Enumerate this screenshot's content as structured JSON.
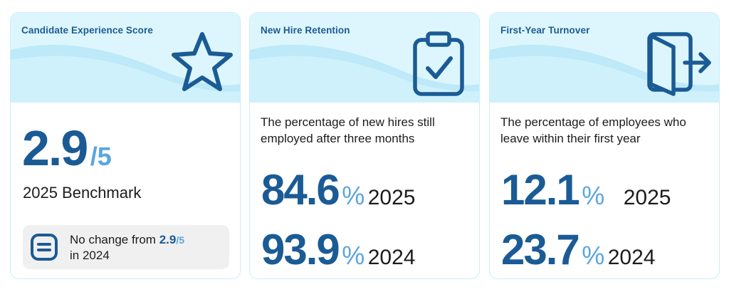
{
  "colors": {
    "accent_dark": "#1b5b95",
    "accent_light": "#5aa6dd",
    "header_bg": "#ddf6fd",
    "wave": "#bde9f8"
  },
  "cards": [
    {
      "title": "Candidate Experience Score",
      "icon": "star-icon",
      "score": "2.9",
      "score_suffix": "/5",
      "caption": "2025 Benchmark",
      "note_icon": "equals-icon",
      "note_prefix": "No change from ",
      "note_value": "2.9",
      "note_suffix": "/5",
      "note_tail": "in 2024"
    },
    {
      "title": "New Hire Retention",
      "icon": "clipboard-check-icon",
      "description": "The percentage of new hires still employed after three months",
      "rows": [
        {
          "value": "84.6",
          "unit": "%",
          "year": "2025"
        },
        {
          "value": "93.9",
          "unit": "%",
          "year": "2024"
        }
      ]
    },
    {
      "title": "First-Year Turnover",
      "icon": "door-exit-icon",
      "description": "The percentage of employees who leave within their first year",
      "rows": [
        {
          "value": "12.1",
          "unit": "%",
          "year": "2025"
        },
        {
          "value": "23.7",
          "unit": "%",
          "year": "2024"
        }
      ]
    }
  ]
}
